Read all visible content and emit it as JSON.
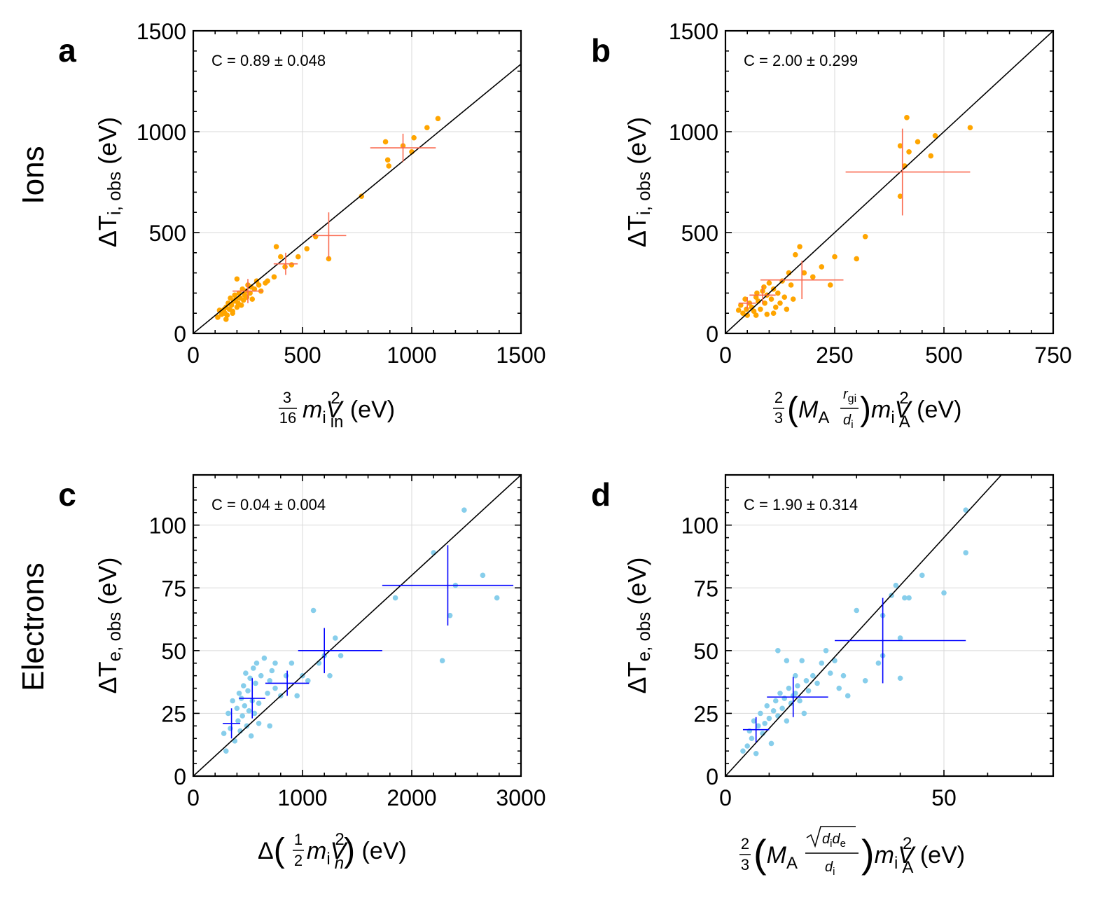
{
  "figure": {
    "row_labels": [
      {
        "text": "Ions",
        "color": "#ff9900"
      },
      {
        "text": "Electrons",
        "color": "#3399ff"
      }
    ],
    "units": "(eV)"
  },
  "chart_data": [
    {
      "panel": "a",
      "type": "scatter",
      "coef_label": "C = 0.89 ± 0.048",
      "xlabel": "3/16 m_i V_in^2 (eV)",
      "ylabel": "ΔT_i,obs (eV)",
      "xlim": [
        0,
        1500
      ],
      "ylim": [
        0,
        1500
      ],
      "xticks": [
        0,
        500,
        1000,
        1500
      ],
      "yticks": [
        0,
        500,
        1000,
        1500
      ],
      "point_color": "#ffa500",
      "errorbar_color": "#fa6a50",
      "grid": true,
      "diagonal_slope": 0.89,
      "points": [
        [
          112,
          80
        ],
        [
          120,
          115
        ],
        [
          130,
          95
        ],
        [
          140,
          118
        ],
        [
          145,
          100
        ],
        [
          150,
          130
        ],
        [
          155,
          90
        ],
        [
          160,
          150
        ],
        [
          165,
          120
        ],
        [
          170,
          175
        ],
        [
          175,
          140
        ],
        [
          180,
          110
        ],
        [
          185,
          160
        ],
        [
          190,
          190
        ],
        [
          195,
          170
        ],
        [
          200,
          130
        ],
        [
          205,
          150
        ],
        [
          210,
          200
        ],
        [
          215,
          175
        ],
        [
          220,
          140
        ],
        [
          225,
          220
        ],
        [
          230,
          165
        ],
        [
          235,
          190
        ],
        [
          240,
          210
        ],
        [
          245,
          180
        ],
        [
          250,
          240
        ],
        [
          260,
          200
        ],
        [
          265,
          230
        ],
        [
          270,
          170
        ],
        [
          280,
          220
        ],
        [
          290,
          260
        ],
        [
          300,
          240
        ],
        [
          310,
          210
        ],
        [
          330,
          250
        ],
        [
          340,
          260
        ],
        [
          370,
          280
        ],
        [
          380,
          430
        ],
        [
          400,
          380
        ],
        [
          420,
          330
        ],
        [
          450,
          340
        ],
        [
          480,
          380
        ],
        [
          520,
          420
        ],
        [
          560,
          480
        ],
        [
          620,
          370
        ],
        [
          770,
          680
        ],
        [
          880,
          950
        ],
        [
          890,
          860
        ],
        [
          895,
          830
        ],
        [
          960,
          930
        ],
        [
          1000,
          900
        ],
        [
          1010,
          970
        ],
        [
          1070,
          1020
        ],
        [
          1120,
          1065
        ],
        [
          180,
          100
        ],
        [
          150,
          70
        ],
        [
          200,
          270
        ]
      ],
      "errorbars": [
        {
          "x": 250,
          "y": 210,
          "xerr": [
            70,
            70
          ],
          "yerr": [
            60,
            60
          ]
        },
        {
          "x": 423,
          "y": 345,
          "xerr": [
            55,
            55
          ],
          "yerr": [
            55,
            55
          ]
        },
        {
          "x": 620,
          "y": 485,
          "xerr": [
            80,
            80
          ],
          "yerr": [
            115,
            115
          ]
        },
        {
          "x": 960,
          "y": 920,
          "xerr": [
            150,
            150
          ],
          "yerr": [
            70,
            70
          ]
        }
      ]
    },
    {
      "panel": "b",
      "type": "scatter",
      "coef_label": "C = 2.00 ± 0.299",
      "xlabel": "2/3 (M_A r_gi/d_i) m_i V_A^2 (eV)",
      "ylabel": "ΔT_i,obs (eV)",
      "xlim": [
        0,
        750
      ],
      "ylim": [
        0,
        1500
      ],
      "xticks": [
        0,
        250,
        500,
        750
      ],
      "yticks": [
        0,
        500,
        1000,
        1500
      ],
      "point_color": "#ffa500",
      "errorbar_color": "#fa6a50",
      "grid": true,
      "diagonal_slope": 2.0,
      "points": [
        [
          30,
          115
        ],
        [
          35,
          140
        ],
        [
          40,
          100
        ],
        [
          45,
          170
        ],
        [
          48,
          120
        ],
        [
          50,
          90
        ],
        [
          55,
          150
        ],
        [
          60,
          130
        ],
        [
          65,
          110
        ],
        [
          70,
          180
        ],
        [
          72,
          200
        ],
        [
          75,
          160
        ],
        [
          80,
          120
        ],
        [
          85,
          210
        ],
        [
          88,
          230
        ],
        [
          90,
          150
        ],
        [
          95,
          190
        ],
        [
          100,
          250
        ],
        [
          105,
          170
        ],
        [
          110,
          220
        ],
        [
          115,
          130
        ],
        [
          120,
          200
        ],
        [
          125,
          150
        ],
        [
          130,
          260
        ],
        [
          135,
          180
        ],
        [
          140,
          120
        ],
        [
          145,
          300
        ],
        [
          150,
          240
        ],
        [
          155,
          170
        ],
        [
          160,
          390
        ],
        [
          170,
          430
        ],
        [
          180,
          300
        ],
        [
          200,
          280
        ],
        [
          220,
          330
        ],
        [
          240,
          240
        ],
        [
          250,
          380
        ],
        [
          300,
          370
        ],
        [
          320,
          480
        ],
        [
          400,
          680
        ],
        [
          400,
          930
        ],
        [
          410,
          830
        ],
        [
          420,
          900
        ],
        [
          415,
          1070
        ],
        [
          440,
          950
        ],
        [
          470,
          880
        ],
        [
          480,
          980
        ],
        [
          560,
          1020
        ],
        [
          95,
          95
        ],
        [
          70,
          90
        ],
        [
          110,
          100
        ]
      ],
      "errorbars": [
        {
          "x": 50,
          "y": 150,
          "xerr": [
            20,
            20
          ],
          "yerr": [
            30,
            30
          ]
        },
        {
          "x": 85,
          "y": 190,
          "xerr": [
            30,
            30
          ],
          "yerr": [
            45,
            45
          ]
        },
        {
          "x": 175,
          "y": 265,
          "xerr": [
            95,
            95
          ],
          "yerr": [
            95,
            95
          ]
        },
        {
          "x": 405,
          "y": 800,
          "xerr": [
            130,
            155
          ],
          "yerr": [
            215,
            215
          ]
        }
      ]
    },
    {
      "panel": "c",
      "type": "scatter",
      "coef_label": "C = 0.04 ± 0.004",
      "xlabel": "Δ(1/2 m_i V_n^2) (eV)",
      "ylabel": "ΔT_e,obs (eV)",
      "xlim": [
        0,
        3000
      ],
      "ylim": [
        0,
        120
      ],
      "xticks": [
        0,
        1000,
        2000,
        3000
      ],
      "yticks": [
        0,
        25,
        50,
        75,
        100
      ],
      "point_color": "#87ceeb",
      "errorbar_color": "#0000ff",
      "grid": true,
      "diagonal_slope": 0.04,
      "points": [
        [
          280,
          17
        ],
        [
          300,
          10
        ],
        [
          320,
          25
        ],
        [
          340,
          19
        ],
        [
          360,
          30
        ],
        [
          380,
          14
        ],
        [
          400,
          27
        ],
        [
          410,
          22
        ],
        [
          420,
          33
        ],
        [
          430,
          18
        ],
        [
          440,
          31
        ],
        [
          450,
          24
        ],
        [
          460,
          36
        ],
        [
          470,
          28
        ],
        [
          480,
          41
        ],
        [
          490,
          20
        ],
        [
          500,
          34
        ],
        [
          510,
          26
        ],
        [
          520,
          39
        ],
        [
          530,
          16
        ],
        [
          540,
          30
        ],
        [
          550,
          43
        ],
        [
          560,
          25
        ],
        [
          570,
          37
        ],
        [
          580,
          45
        ],
        [
          600,
          29
        ],
        [
          620,
          40
        ],
        [
          650,
          47
        ],
        [
          680,
          33
        ],
        [
          700,
          38
        ],
        [
          720,
          42
        ],
        [
          750,
          35
        ],
        [
          800,
          32
        ],
        [
          850,
          40
        ],
        [
          900,
          45
        ],
        [
          950,
          32
        ],
        [
          1000,
          40
        ],
        [
          1050,
          38
        ],
        [
          1100,
          66
        ],
        [
          1150,
          45
        ],
        [
          1200,
          48
        ],
        [
          1250,
          40
        ],
        [
          1300,
          55
        ],
        [
          1350,
          48
        ],
        [
          1850,
          71
        ],
        [
          2200,
          89
        ],
        [
          2280,
          46
        ],
        [
          2350,
          64
        ],
        [
          2400,
          76
        ],
        [
          2480,
          106
        ],
        [
          2650,
          80
        ],
        [
          2780,
          71
        ],
        [
          600,
          21
        ],
        [
          700,
          20
        ],
        [
          750,
          45
        ]
      ],
      "errorbars": [
        {
          "x": 350,
          "y": 21,
          "xerr": [
            80,
            80
          ],
          "yerr": [
            6,
            6
          ]
        },
        {
          "x": 540,
          "y": 31,
          "xerr": [
            120,
            120
          ],
          "yerr": [
            8,
            8
          ]
        },
        {
          "x": 860,
          "y": 37,
          "xerr": [
            200,
            200
          ],
          "yerr": [
            5,
            5
          ]
        },
        {
          "x": 1200,
          "y": 50,
          "xerr": [
            240,
            530
          ],
          "yerr": [
            9,
            9
          ]
        },
        {
          "x": 2330,
          "y": 76,
          "xerr": [
            600,
            600
          ],
          "yerr": [
            16,
            16
          ]
        }
      ]
    },
    {
      "panel": "d",
      "type": "scatter",
      "coef_label": "C = 1.90 ± 0.314",
      "xlabel": "2/3 (M_A √(d_i d_e)/d_i) m_i V_A^2 (eV)",
      "ylabel": "ΔT_e,obs (eV)",
      "xlim": [
        0,
        75
      ],
      "ylim": [
        0,
        120
      ],
      "xticks": [
        0,
        50
      ],
      "yticks": [
        0,
        25,
        50,
        75,
        100
      ],
      "point_color": "#87ceeb",
      "errorbar_color": "#0000ff",
      "grid": true,
      "diagonal_slope": 1.9,
      "points": [
        [
          4,
          10
        ],
        [
          5,
          12
        ],
        [
          5.5,
          18
        ],
        [
          6,
          15
        ],
        [
          6.5,
          22
        ],
        [
          7,
          9
        ],
        [
          7.5,
          20
        ],
        [
          8,
          25
        ],
        [
          8.5,
          17
        ],
        [
          9,
          21
        ],
        [
          9.5,
          28
        ],
        [
          10,
          23
        ],
        [
          10.5,
          13
        ],
        [
          11,
          26
        ],
        [
          11.5,
          30
        ],
        [
          12,
          24
        ],
        [
          12.5,
          33
        ],
        [
          13,
          27
        ],
        [
          13.5,
          31
        ],
        [
          14,
          22
        ],
        [
          14.5,
          35
        ],
        [
          15,
          29
        ],
        [
          15.5,
          32
        ],
        [
          16,
          40
        ],
        [
          16.5,
          36
        ],
        [
          17,
          30
        ],
        [
          17.5,
          46
        ],
        [
          18,
          25
        ],
        [
          18.5,
          38
        ],
        [
          19,
          34
        ],
        [
          20,
          40
        ],
        [
          21,
          37
        ],
        [
          22,
          45
        ],
        [
          23,
          50
        ],
        [
          24,
          41
        ],
        [
          25,
          46
        ],
        [
          26,
          35
        ],
        [
          27,
          40
        ],
        [
          28,
          32
        ],
        [
          30,
          66
        ],
        [
          32,
          38
        ],
        [
          35,
          45
        ],
        [
          36,
          48
        ],
        [
          36,
          64
        ],
        [
          38,
          72
        ],
        [
          39,
          76
        ],
        [
          40,
          39
        ],
        [
          40,
          55
        ],
        [
          41,
          71
        ],
        [
          42,
          71
        ],
        [
          45,
          80
        ],
        [
          50,
          73
        ],
        [
          55,
          89
        ],
        [
          55,
          106
        ],
        [
          12,
          50
        ],
        [
          14,
          46
        ],
        [
          16,
          33
        ]
      ],
      "errorbars": [
        {
          "x": 7,
          "y": 18.5,
          "xerr": [
            3,
            3
          ],
          "yerr": [
            5,
            5
          ]
        },
        {
          "x": 15.5,
          "y": 31.5,
          "xerr": [
            6,
            8
          ],
          "yerr": [
            8,
            8
          ]
        },
        {
          "x": 36,
          "y": 54,
          "xerr": [
            11,
            19
          ],
          "yerr": [
            17,
            17
          ]
        }
      ]
    }
  ]
}
